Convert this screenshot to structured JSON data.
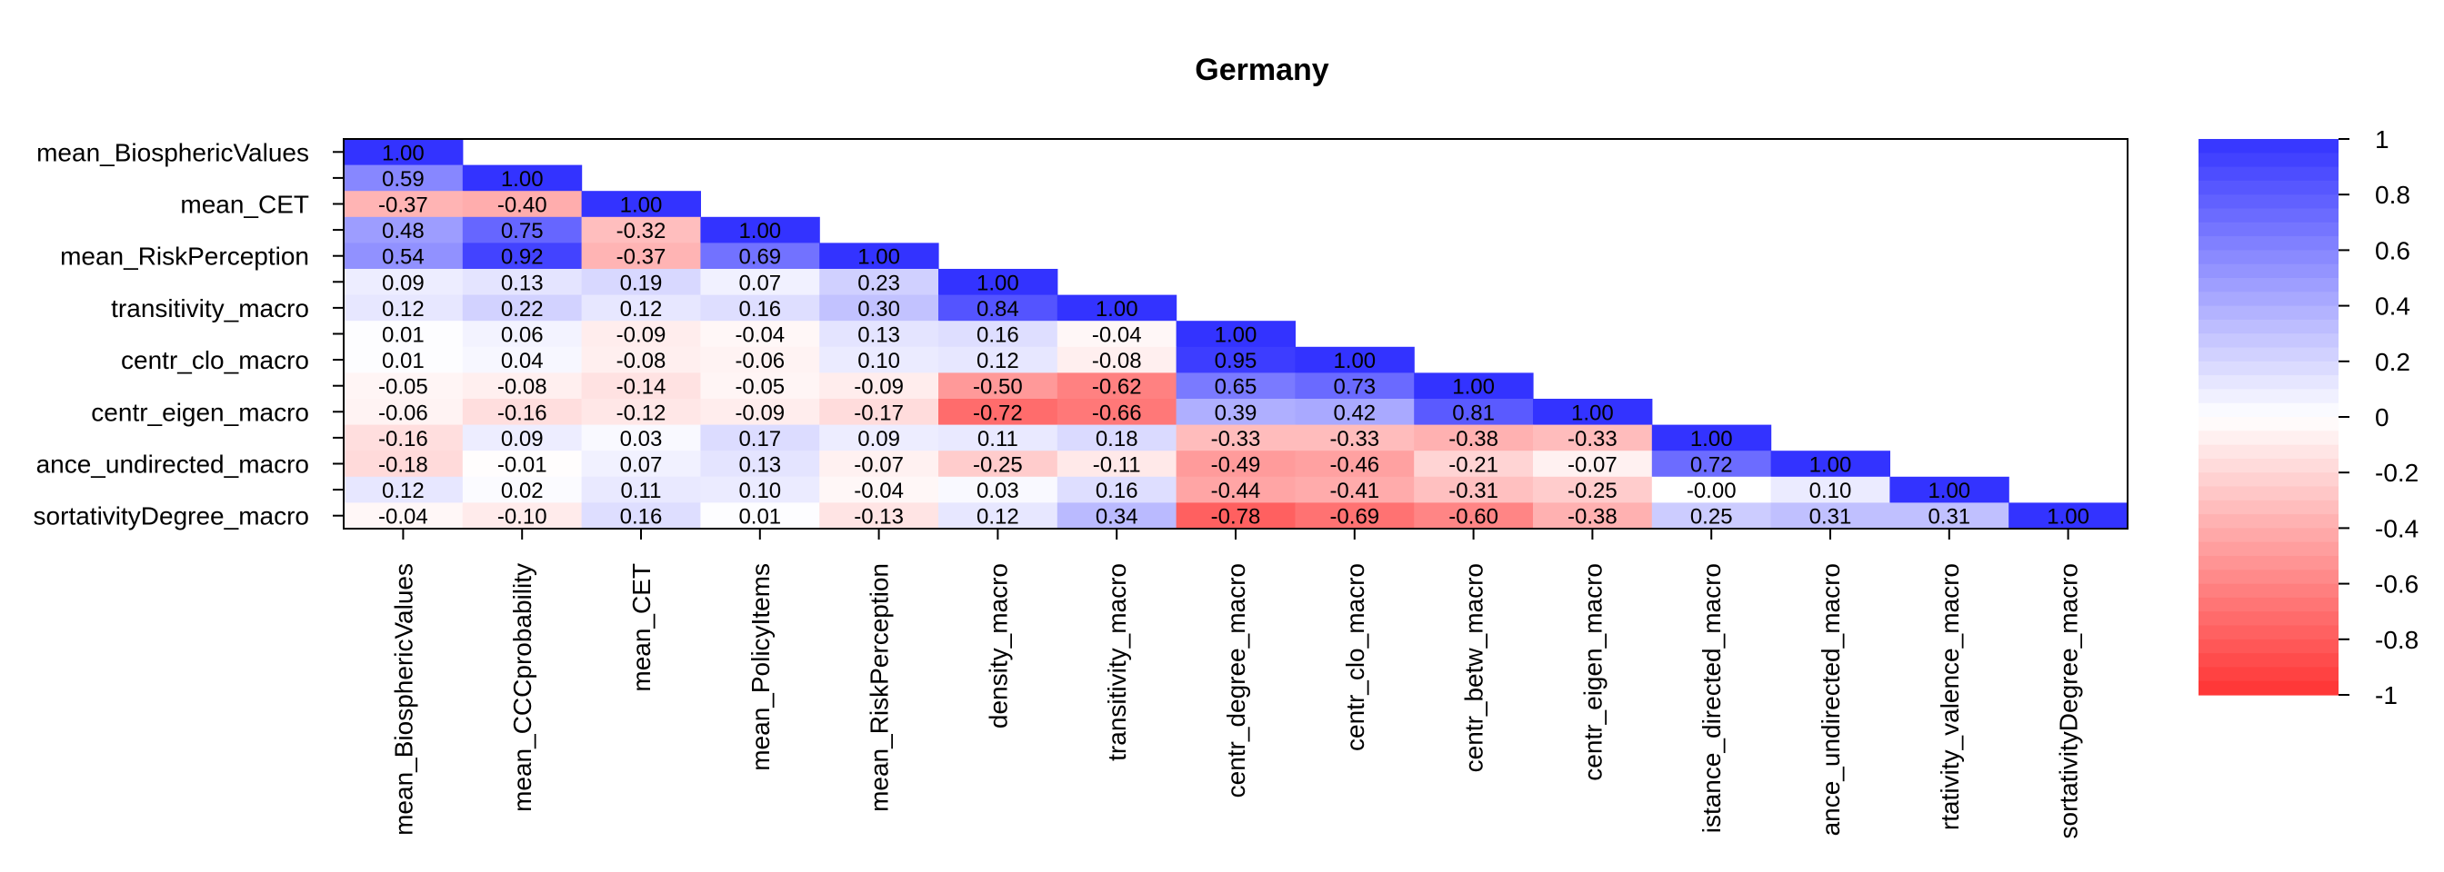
{
  "chart_data": {
    "type": "heatmap",
    "subtype": "lower-triangle correlation matrix",
    "title": "Germany",
    "variables": [
      "mean_BiosphericValues",
      "mean_CCCprobability",
      "mean_CET",
      "mean_PolicyItems",
      "mean_RiskPerception",
      "density_macro",
      "transitivity_macro",
      "centr_degree_macro",
      "centr_clo_macro",
      "centr_betw_macro",
      "centr_eigen_macro",
      "distance_directed_macro",
      "distance_undirected_macro",
      "assortativity_valence_macro",
      "assortativityDegree_macro"
    ],
    "row_labels_shown": [
      "mean_BiosphericValues",
      "",
      "mean_CET",
      "",
      "mean_RiskPerception",
      "",
      "transitivity_macro",
      "",
      "centr_clo_macro",
      "",
      "centr_eigen_macro",
      "",
      "ance_undirected_macro",
      "",
      "sortativityDegree_macro"
    ],
    "col_labels_shown": [
      "mean_BiosphericValues",
      "mean_CCCprobability",
      "mean_CET",
      "mean_PolicyItems",
      "mean_RiskPerception",
      "density_macro",
      "transitivity_macro",
      "centr_degree_macro",
      "centr_clo_macro",
      "centr_betw_macro",
      "centr_eigen_macro",
      "istance_directed_macro",
      "ance_undirected_macro",
      "rtativity_valence_macro",
      "sortativityDegree_macro"
    ],
    "matrix": [
      [
        "1.00"
      ],
      [
        "0.59",
        "1.00"
      ],
      [
        "-0.37",
        "-0.40",
        "1.00"
      ],
      [
        "0.48",
        "0.75",
        "-0.32",
        "1.00"
      ],
      [
        "0.54",
        "0.92",
        "-0.37",
        "0.69",
        "1.00"
      ],
      [
        "0.09",
        "0.13",
        "0.19",
        "0.07",
        "0.23",
        "1.00"
      ],
      [
        "0.12",
        "0.22",
        "0.12",
        "0.16",
        "0.30",
        "0.84",
        "1.00"
      ],
      [
        "0.01",
        "0.06",
        "-0.09",
        "-0.04",
        "0.13",
        "0.16",
        "-0.04",
        "1.00"
      ],
      [
        "0.01",
        "0.04",
        "-0.08",
        "-0.06",
        "0.10",
        "0.12",
        "-0.08",
        "0.95",
        "1.00"
      ],
      [
        "-0.05",
        "-0.08",
        "-0.14",
        "-0.05",
        "-0.09",
        "-0.50",
        "-0.62",
        "0.65",
        "0.73",
        "1.00"
      ],
      [
        "-0.06",
        "-0.16",
        "-0.12",
        "-0.09",
        "-0.17",
        "-0.72",
        "-0.66",
        "0.39",
        "0.42",
        "0.81",
        "1.00"
      ],
      [
        "-0.16",
        "0.09",
        "0.03",
        "0.17",
        "0.09",
        "0.11",
        "0.18",
        "-0.33",
        "-0.33",
        "-0.38",
        "-0.33",
        "1.00"
      ],
      [
        "-0.18",
        "-0.01",
        "0.07",
        "0.13",
        "-0.07",
        "-0.25",
        "-0.11",
        "-0.49",
        "-0.46",
        "-0.21",
        "-0.07",
        "0.72",
        "1.00"
      ],
      [
        "0.12",
        "0.02",
        "0.11",
        "0.10",
        "-0.04",
        "0.03",
        "0.16",
        "-0.44",
        "-0.41",
        "-0.31",
        "-0.25",
        "-0.00",
        "0.10",
        "1.00"
      ],
      [
        "-0.04",
        "-0.10",
        "0.16",
        "0.01",
        "-0.13",
        "0.12",
        "0.34",
        "-0.78",
        "-0.69",
        "-0.60",
        "-0.38",
        "0.25",
        "0.31",
        "0.31",
        "1.00"
      ]
    ],
    "colorbar": {
      "range": [
        -1,
        1
      ],
      "ticks": [
        "1",
        "0.8",
        "0.6",
        "0.4",
        "0.2",
        "0",
        "-0.2",
        "-0.4",
        "-0.6",
        "-0.8",
        "-1"
      ],
      "low_color": "#ff3333",
      "mid_color": "#ffffff",
      "high_color": "#3333ff"
    },
    "legend_position": "right"
  }
}
